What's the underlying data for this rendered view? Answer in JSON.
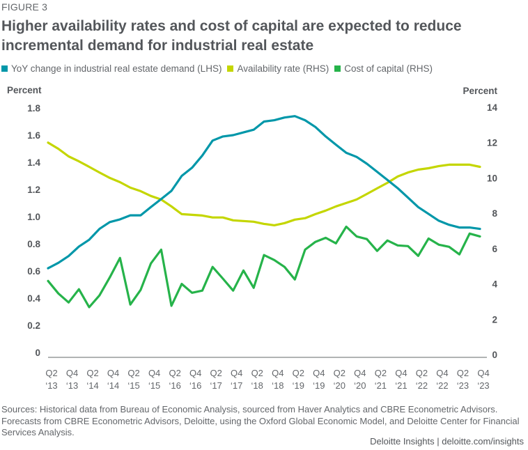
{
  "figure_label": "FIGURE 3",
  "title": "Higher availability rates and cost of capital are expected to reduce incremental demand for industrial real estate",
  "legend": [
    {
      "label": "YoY change in industrial real estate demand (LHS)",
      "color": "#0097a9"
    },
    {
      "label": "Availability rate (RHS)",
      "color": "#c4d600"
    },
    {
      "label": "Cost of capital (RHS)",
      "color": "#26b34a"
    }
  ],
  "sources": "Sources: Historical data from Bureau of Economic Analysis, sourced from Haver Analytics and CBRE Econometric Advisors. Forecasts from CBRE Econometric Advisors, Deloitte, using the Oxford Global Economic Model, and Deloitte Center for Financial Services Analysis.",
  "brand": "Deloitte Insights | deloitte.com/insights",
  "chart_data": {
    "type": "line",
    "title": "Higher availability rates and cost of capital are expected to reduce incremental demand for industrial real estate",
    "xlabel": "",
    "ylabel_left": "Percent",
    "ylabel_right": "Percent",
    "ylim_left": [
      0,
      1.8
    ],
    "ylim_right": [
      0,
      14
    ],
    "yticks_left": [
      "0",
      "0.2",
      "0.4",
      "0.6",
      "0.8",
      "1.0",
      "1.2",
      "1.4",
      "1.6",
      "1.8"
    ],
    "yticks_right": [
      "0",
      "2",
      "4",
      "6",
      "8",
      "10",
      "12",
      "14"
    ],
    "grid": false,
    "legend_position": "top-left",
    "x": [
      "Q2 '13",
      "Q3 '13",
      "Q4 '13",
      "Q1 '14",
      "Q2 '14",
      "Q3 '14",
      "Q4 '14",
      "Q1 '15",
      "Q2 '15",
      "Q3 '15",
      "Q4 '15",
      "Q1 '16",
      "Q2 '16",
      "Q3 '16",
      "Q4 '16",
      "Q1 '17",
      "Q2 '17",
      "Q3 '17",
      "Q4 '17",
      "Q1 '18",
      "Q2 '18",
      "Q3 '18",
      "Q4 '18",
      "Q1 '19",
      "Q2 '19",
      "Q3 '19",
      "Q4 '19",
      "Q1 '20",
      "Q2 '20",
      "Q3 '20",
      "Q4 '20",
      "Q1 '21",
      "Q2 '21",
      "Q3 '21",
      "Q4 '21",
      "Q1 '22",
      "Q2 '22",
      "Q3 '22",
      "Q4 '22",
      "Q1 '23",
      "Q2 '23",
      "Q3 '23",
      "Q4 '23"
    ],
    "xtick_labels": [
      {
        "q": "Q2",
        "y": "'13"
      },
      {
        "q": "Q4",
        "y": "'13"
      },
      {
        "q": "Q2",
        "y": "'14"
      },
      {
        "q": "Q4",
        "y": "'14"
      },
      {
        "q": "Q2",
        "y": "'15"
      },
      {
        "q": "Q4",
        "y": "'15"
      },
      {
        "q": "Q2",
        "y": "'16"
      },
      {
        "q": "Q4",
        "y": "'16"
      },
      {
        "q": "Q2",
        "y": "'17"
      },
      {
        "q": "Q4",
        "y": "'17"
      },
      {
        "q": "Q2",
        "y": "'18"
      },
      {
        "q": "Q4",
        "y": "'18"
      },
      {
        "q": "Q2",
        "y": "'19"
      },
      {
        "q": "Q4",
        "y": "'19"
      },
      {
        "q": "Q2",
        "y": "'20"
      },
      {
        "q": "Q4",
        "y": "'20"
      },
      {
        "q": "Q2",
        "y": "'21"
      },
      {
        "q": "Q4",
        "y": "'21"
      },
      {
        "q": "Q2",
        "y": "'22"
      },
      {
        "q": "Q4",
        "y": "'22"
      },
      {
        "q": "Q2",
        "y": "'23"
      },
      {
        "q": "Q4",
        "y": "'23"
      }
    ],
    "series": [
      {
        "name": "YoY change in industrial real estate demand (LHS)",
        "axis": "left",
        "color": "#0097a9",
        "values": [
          0.62,
          0.66,
          0.71,
          0.78,
          0.83,
          0.91,
          0.96,
          0.98,
          1.01,
          1.01,
          1.07,
          1.13,
          1.19,
          1.3,
          1.36,
          1.45,
          1.56,
          1.59,
          1.6,
          1.62,
          1.64,
          1.7,
          1.71,
          1.73,
          1.74,
          1.71,
          1.66,
          1.59,
          1.53,
          1.47,
          1.44,
          1.39,
          1.33,
          1.27,
          1.21,
          1.14,
          1.07,
          1.02,
          0.97,
          0.94,
          0.92,
          0.92,
          0.91
        ]
      },
      {
        "name": "Availability rate (RHS)",
        "axis": "right",
        "color": "#c4d600",
        "values": [
          12.0,
          11.65,
          11.22,
          10.94,
          10.63,
          10.31,
          10.0,
          9.76,
          9.45,
          9.25,
          8.98,
          8.78,
          8.39,
          7.95,
          7.91,
          7.87,
          7.76,
          7.76,
          7.6,
          7.56,
          7.52,
          7.4,
          7.32,
          7.44,
          7.64,
          7.72,
          7.95,
          8.15,
          8.39,
          8.58,
          8.78,
          9.09,
          9.41,
          9.72,
          10.08,
          10.31,
          10.47,
          10.55,
          10.67,
          10.75,
          10.75,
          10.75,
          10.63
        ]
      },
      {
        "name": "Cost of capital (RHS)",
        "axis": "right",
        "color": "#26b34a",
        "values": [
          4.17,
          3.46,
          2.95,
          3.7,
          2.68,
          3.35,
          4.37,
          5.47,
          2.83,
          3.66,
          5.16,
          5.94,
          2.76,
          4.0,
          3.5,
          3.62,
          4.96,
          4.3,
          3.62,
          4.76,
          3.78,
          5.63,
          5.35,
          4.96,
          4.25,
          5.94,
          6.38,
          6.61,
          6.3,
          7.24,
          6.69,
          6.54,
          5.87,
          6.46,
          6.18,
          6.14,
          5.59,
          6.57,
          6.22,
          6.1,
          5.67,
          6.85,
          6.69
        ]
      }
    ]
  }
}
